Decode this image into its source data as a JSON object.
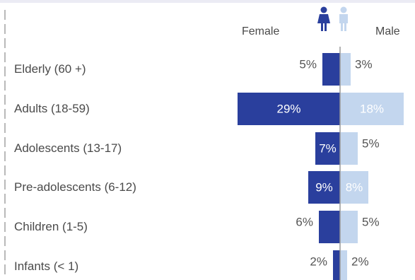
{
  "colors": {
    "female": "#2a3f9d",
    "male": "#c3d6ee",
    "axis": "#9a9a9a",
    "dash": "#b9b9b9"
  },
  "legend": {
    "female": "Female",
    "male": "Male",
    "female_icon": "female-person-icon",
    "male_icon": "male-person-icon"
  },
  "chart_data": {
    "type": "bar",
    "orientation": "horizontal-diverging",
    "categories": [
      "Elderly (60 +)",
      "Adults (18-59)",
      "Adolescents (13-17)",
      "Pre-adolescents (6-12)",
      "Children (1-5)",
      "Infants (< 1)"
    ],
    "series": [
      {
        "name": "Female",
        "values": [
          5,
          29,
          7,
          9,
          6,
          2
        ],
        "labels": [
          "5%",
          "29%",
          "7%",
          "9%",
          "6%",
          "2%"
        ]
      },
      {
        "name": "Male",
        "values": [
          3,
          18,
          5,
          8,
          5,
          2
        ],
        "labels": [
          "3%",
          "18%",
          "5%",
          "8%",
          "5%",
          "2%"
        ]
      }
    ],
    "unit": "%"
  }
}
